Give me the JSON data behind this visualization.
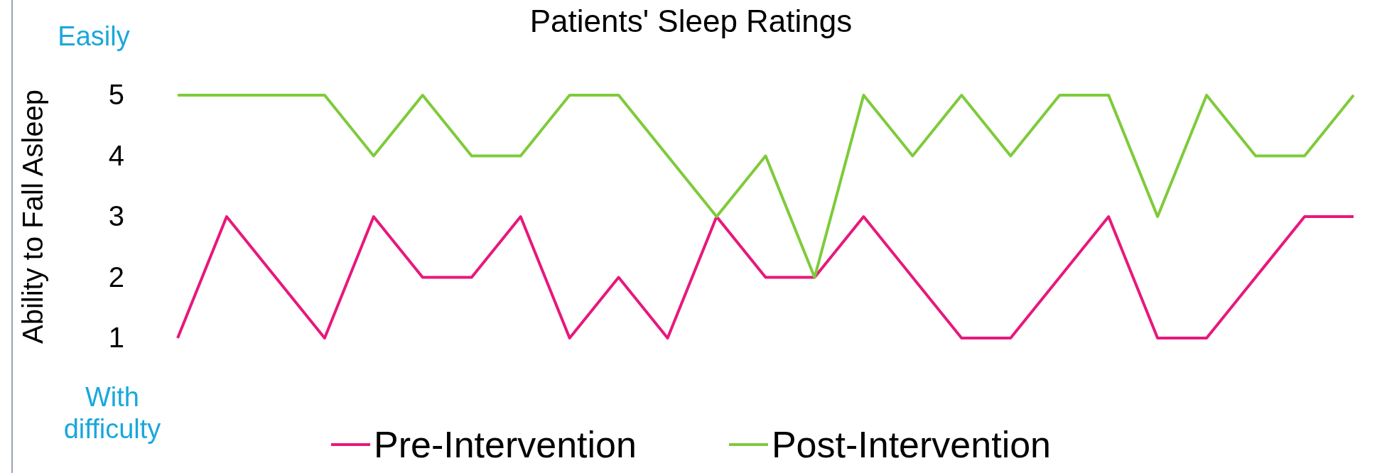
{
  "chart_data": {
    "type": "line",
    "title": "Patients' Sleep Ratings",
    "ylabel": "Ability to Fall Asleep",
    "categories": [
      null,
      null,
      null,
      null,
      null,
      null,
      null,
      null,
      null,
      null,
      null,
      null,
      null,
      null,
      null,
      null,
      null,
      null,
      null,
      null,
      null,
      null,
      null,
      null,
      null
    ],
    "series": [
      {
        "name": "Pre-Intervention",
        "color": "#e8187c",
        "values": [
          1,
          3,
          2,
          1,
          3,
          2,
          2,
          3,
          1,
          2,
          1,
          3,
          2,
          2,
          3,
          2,
          1,
          1,
          2,
          3,
          1,
          1,
          2,
          3,
          3
        ]
      },
      {
        "name": "Post-Intervention",
        "color": "#7ecb3a",
        "values": [
          5,
          5,
          5,
          5,
          4,
          5,
          4,
          4,
          5,
          5,
          4,
          3,
          4,
          2,
          5,
          4,
          5,
          4,
          5,
          5,
          3,
          5,
          4,
          4,
          5
        ]
      }
    ],
    "ylim": [
      1,
      5
    ],
    "yticks": [
      1,
      2,
      3,
      4,
      5
    ],
    "grid": false,
    "legend": "bottom",
    "marker": "none",
    "line_style": "solid",
    "annotations": [
      "Easily",
      "With difficulty"
    ]
  }
}
